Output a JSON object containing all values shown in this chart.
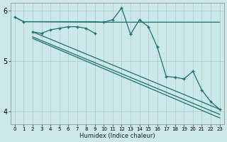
{
  "xlabel": "Humidex (Indice chaleur)",
  "bg_color": "#cce8e8",
  "grid_color": "#aacccc",
  "line_color": "#1a7070",
  "xlim": [
    -0.5,
    23.5
  ],
  "ylim": [
    3.75,
    6.15
  ],
  "yticks": [
    4,
    5,
    6
  ],
  "xticks": [
    0,
    1,
    2,
    3,
    4,
    5,
    6,
    7,
    8,
    9,
    10,
    11,
    12,
    13,
    14,
    15,
    16,
    17,
    18,
    19,
    20,
    21,
    22,
    23
  ],
  "s1": {
    "x": [
      0,
      1,
      2,
      3,
      4,
      5,
      6,
      7,
      8,
      9,
      10,
      11,
      12,
      13,
      14,
      15,
      16,
      17,
      18,
      19,
      20,
      21,
      22,
      23
    ],
    "y": [
      5.87,
      5.78,
      5.78,
      5.78,
      5.78,
      5.78,
      5.78,
      5.78,
      5.78,
      5.78,
      5.77,
      5.77,
      5.77,
      5.77,
      5.77,
      5.77,
      5.77,
      5.77,
      5.77,
      5.77,
      5.77,
      5.77,
      5.77,
      5.77
    ]
  },
  "s2": {
    "x": [
      0,
      1,
      10,
      11,
      12,
      13,
      14,
      15,
      16,
      17,
      18,
      19,
      20,
      21,
      22,
      23
    ],
    "y": [
      5.87,
      5.78,
      5.77,
      5.82,
      6.05,
      5.53,
      5.82,
      5.68,
      5.28,
      4.7,
      4.68,
      4.65,
      4.8,
      4.43,
      4.2,
      4.05
    ]
  },
  "s3": {
    "x": [
      2,
      3,
      4,
      5,
      6,
      7,
      8,
      9
    ],
    "y": [
      5.58,
      5.55,
      5.62,
      5.65,
      5.68,
      5.68,
      5.65,
      5.55
    ]
  },
  "s4": {
    "x": [
      2,
      23
    ],
    "y": [
      5.58,
      4.05
    ]
  },
  "s5": {
    "x": [
      2,
      23
    ],
    "y": [
      5.48,
      3.95
    ]
  },
  "s6": {
    "x": [
      2,
      23
    ],
    "y": [
      5.45,
      3.88
    ]
  }
}
